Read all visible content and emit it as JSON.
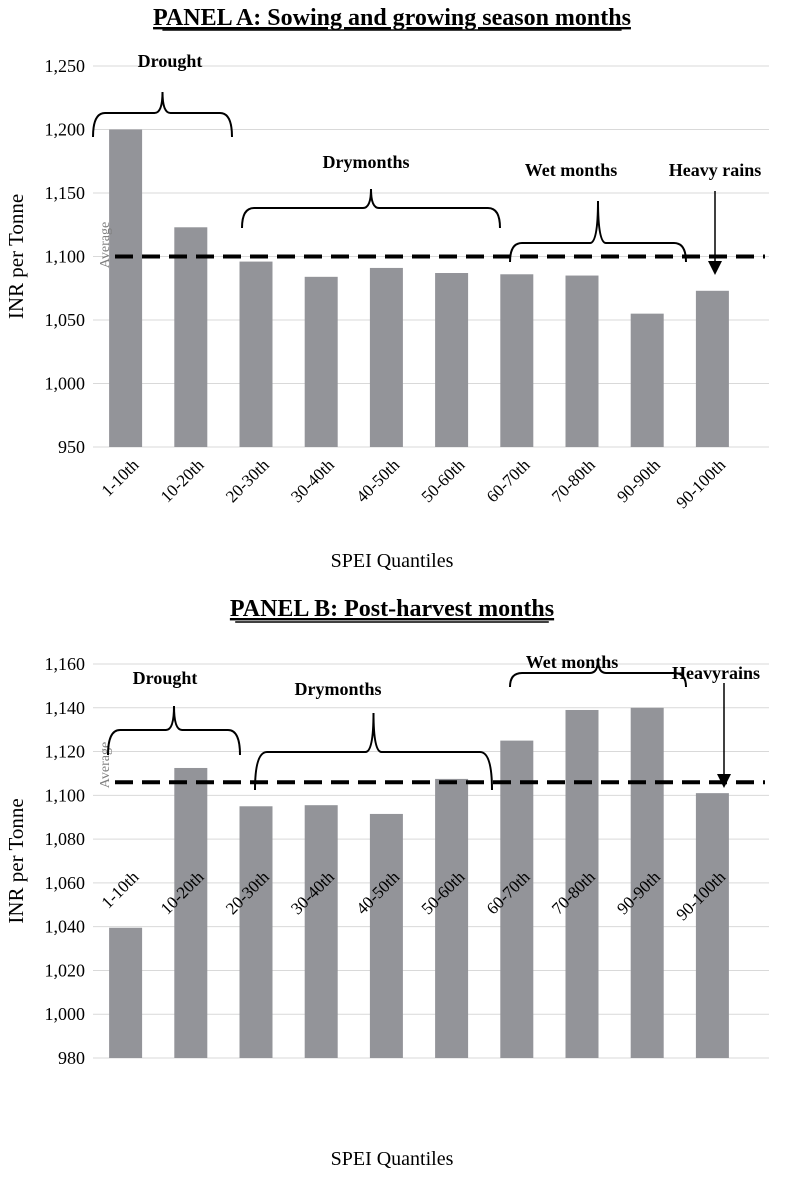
{
  "colors": {
    "bar": "#939499",
    "grid": "#d9d9d9",
    "text": "#000000",
    "average_line": "#000000",
    "average_label": "#808080"
  },
  "chart_data": [
    {
      "type": "bar",
      "title": "PANEL A: Sowing and growing season months",
      "xlabel": "SPEI Quantiles",
      "ylabel": "INR per Tonne",
      "categories": [
        "1-10th",
        "10-20th",
        "20-30th",
        "30-40th",
        "40-50th",
        "50-60th",
        "60-70th",
        "70-80th",
        "90-90th",
        "90-100th"
      ],
      "values": [
        1200,
        1123,
        1096,
        1084,
        1091,
        1087,
        1086,
        1085,
        1055,
        1073
      ],
      "ylim": [
        950,
        1250
      ],
      "yticks": [
        950,
        1000,
        1050,
        1100,
        1150,
        1200,
        1250
      ],
      "ytick_labels": [
        "950",
        "1,000",
        "1,050",
        "1,100",
        "1,150",
        "1,200",
        "1,250"
      ],
      "grid": true,
      "average": {
        "value": 1100,
        "label": "Average"
      },
      "annotations": [
        {
          "text": "Drought",
          "type": "brace",
          "from_index": 0,
          "to_index": 1
        },
        {
          "text": "Drymonths",
          "type": "brace",
          "from_index": 2,
          "to_index": 5
        },
        {
          "text": "Wet months",
          "type": "brace",
          "from_index": 6,
          "to_index": 8
        },
        {
          "text": "Heavy rains",
          "type": "arrow",
          "index": 9
        }
      ]
    },
    {
      "type": "bar",
      "title": "PANEL B: Post-harvest months",
      "xlabel": "SPEI Quantiles",
      "ylabel": "INR per Tonne",
      "categories": [
        "1-10th",
        "10-20th",
        "20-30th",
        "30-40th",
        "40-50th",
        "50-60th",
        "60-70th",
        "70-80th",
        "90-90th",
        "90-100th"
      ],
      "values": [
        1039.5,
        1112.5,
        1095,
        1095.5,
        1091.5,
        1107.5,
        1125,
        1139,
        1140,
        1101
      ],
      "ylim": [
        980,
        1160
      ],
      "yticks": [
        980,
        1000,
        1020,
        1040,
        1060,
        1080,
        1100,
        1120,
        1140,
        1160
      ],
      "ytick_labels": [
        "980",
        "1,000",
        "1,020",
        "1,040",
        "1,060",
        "1,080",
        "1,100",
        "1,120",
        "1,140",
        "1,160"
      ],
      "grid": true,
      "average": {
        "value": 1106,
        "label": "Average"
      },
      "annotations": [
        {
          "text": "Drought",
          "type": "brace",
          "from_index": 0,
          "to_index": 1
        },
        {
          "text": "Drymonths",
          "type": "brace",
          "from_index": 2,
          "to_index": 5
        },
        {
          "text": "Wet months",
          "type": "brace",
          "from_index": 6,
          "to_index": 8
        },
        {
          "text": "Heavyrains",
          "type": "arrow",
          "index": 9
        }
      ]
    }
  ]
}
